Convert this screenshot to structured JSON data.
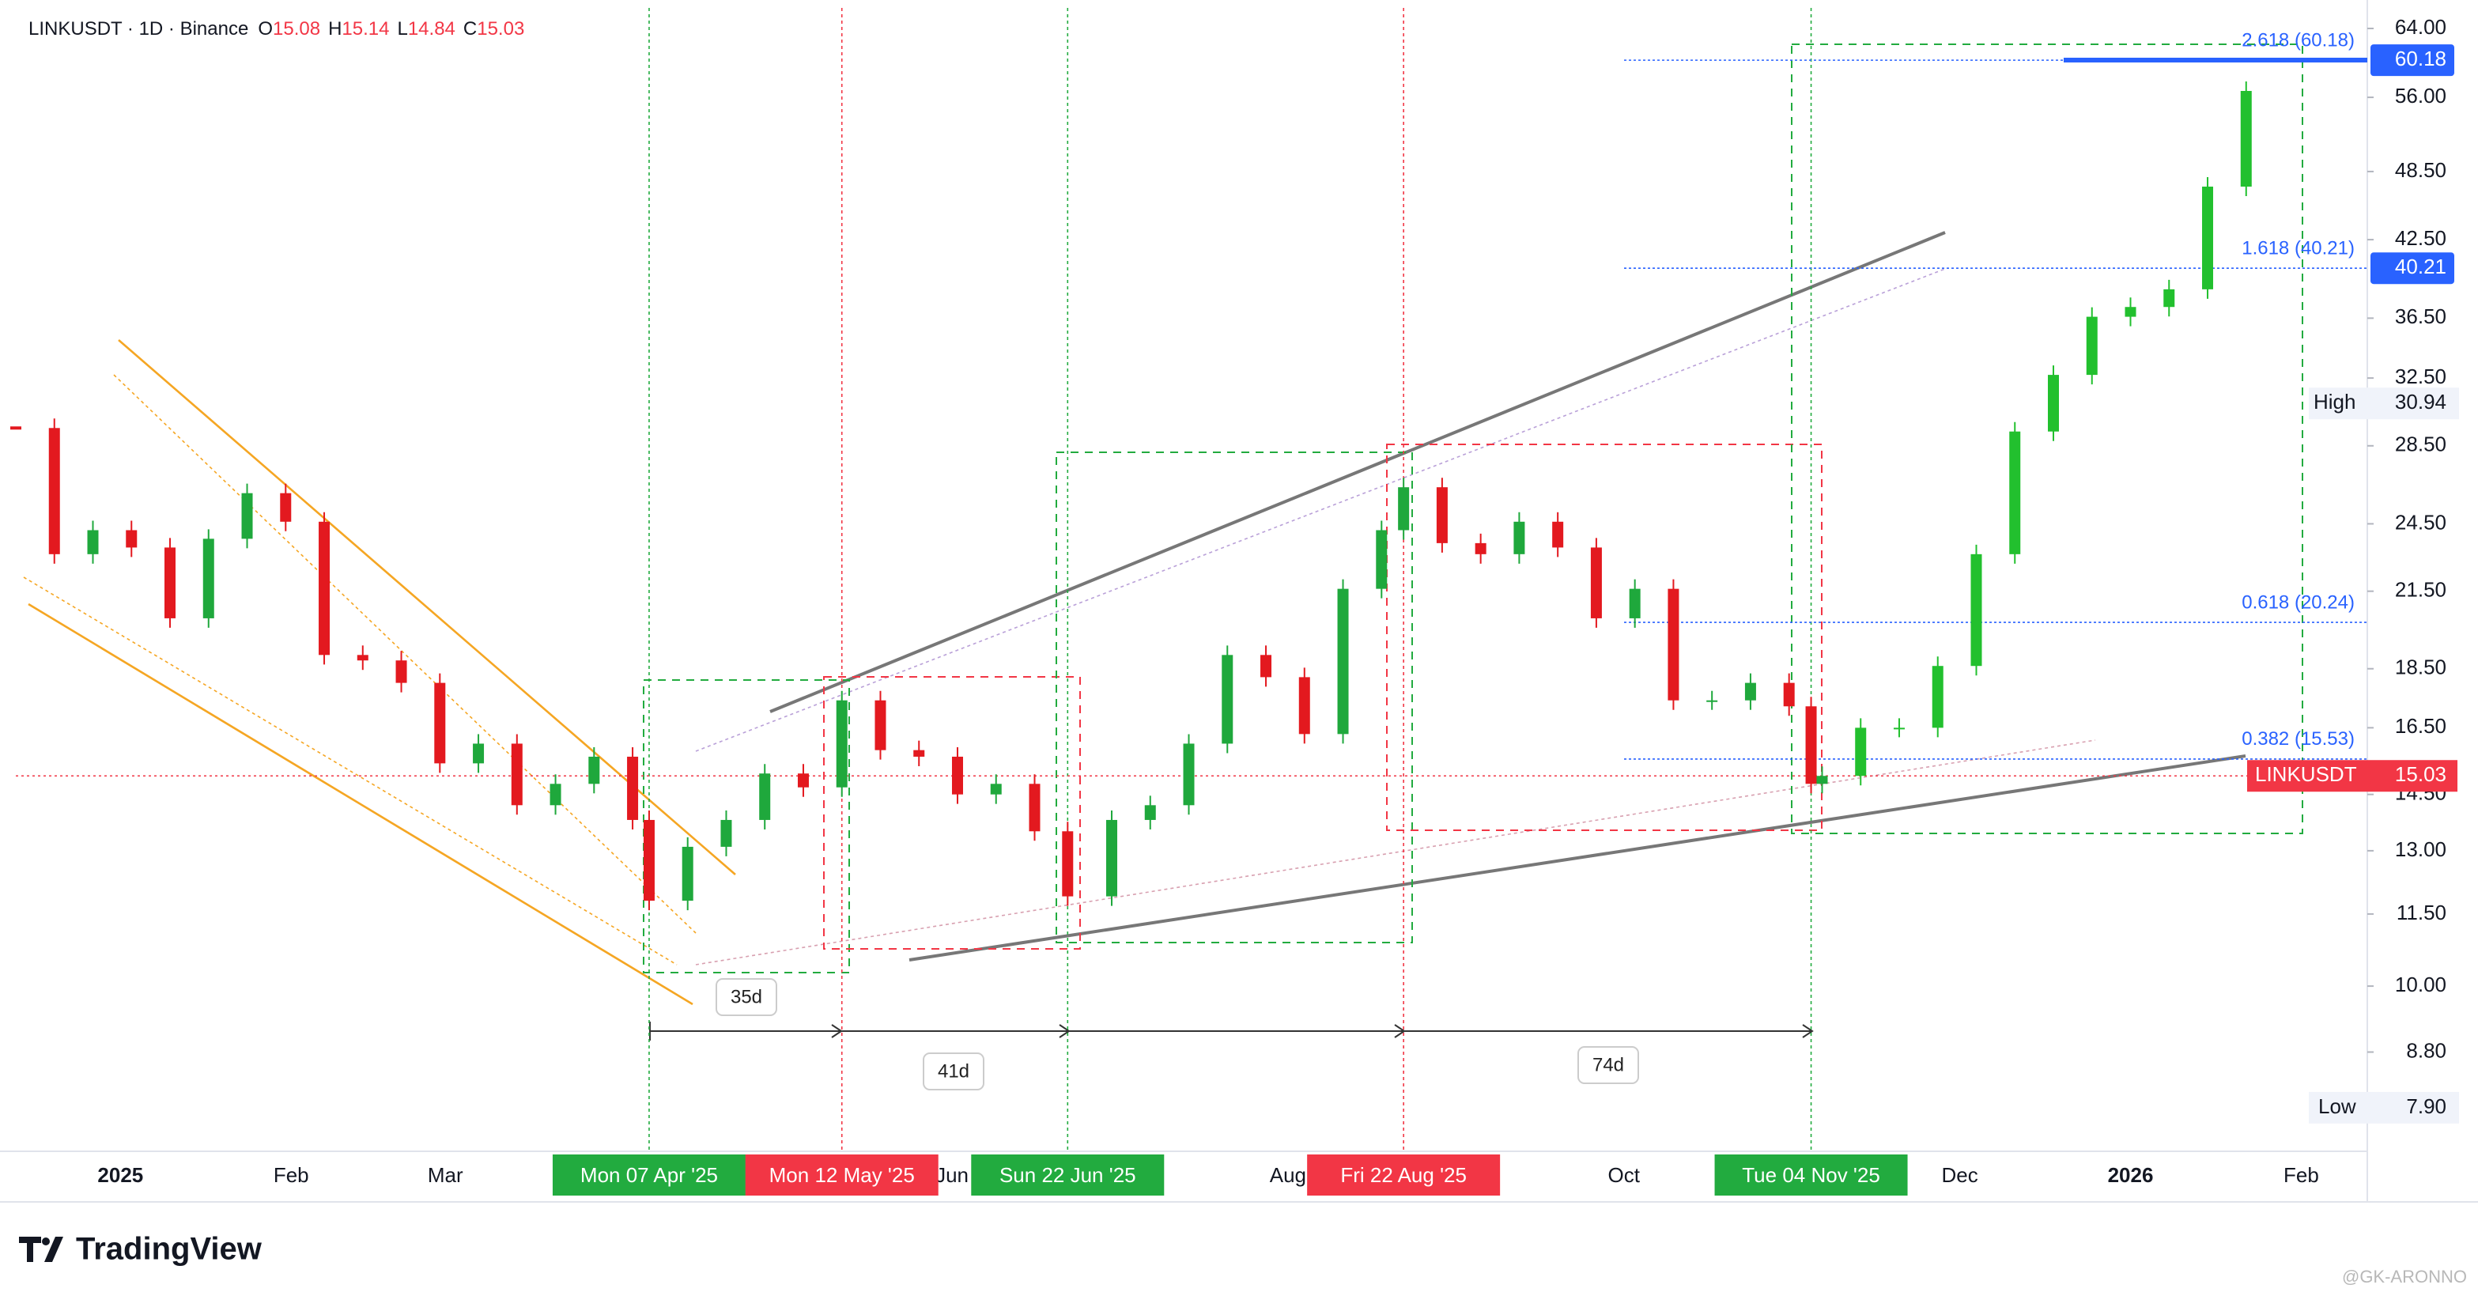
{
  "header": {
    "symbol_line": "LINKUSDT · 1D · Binance",
    "ohlc": [
      {
        "key": "O",
        "value": 15.08
      },
      {
        "key": "H",
        "value": 15.14
      },
      {
        "key": "L",
        "value": 14.84
      },
      {
        "key": "C",
        "value": 15.03
      }
    ]
  },
  "chart_data": {
    "type": "candlestick",
    "log_scale": true,
    "up_color": "#1fa83c",
    "down_color": "#e3191f",
    "projection_color": "#22c02e",
    "xlim": [
      "2024-12-13",
      "2026-02-13"
    ],
    "xticks": [
      {
        "value": "2025-01-01",
        "label": "2025"
      },
      {
        "value": "2025-02-01",
        "label": "Feb"
      },
      {
        "value": "2025-03-01",
        "label": "Mar"
      },
      {
        "value": "2025-06-01",
        "label": "Jun"
      },
      {
        "value": "2025-08-01",
        "label": "Aug"
      },
      {
        "value": "2025-10-01",
        "label": "Oct"
      },
      {
        "value": "2025-12-01",
        "label": "Dec"
      },
      {
        "value": "2026-01-01",
        "label": "2026"
      },
      {
        "value": "2026-02-01",
        "label": "Feb"
      }
    ],
    "ylim": [
      7.26,
      66.6
    ],
    "yticks": [
      {
        "value": 64,
        "label": "64.00"
      },
      {
        "value": 56,
        "label": "56.00"
      },
      {
        "value": 48.5,
        "label": "48.50"
      },
      {
        "value": 42.5,
        "label": "42.50"
      },
      {
        "value": 36.5,
        "label": "36.50"
      },
      {
        "value": 32.5,
        "label": "32.50"
      },
      {
        "value": 28.5,
        "label": "28.50"
      },
      {
        "value": 24.5,
        "label": "24.50"
      },
      {
        "value": 21.5,
        "label": "21.50"
      },
      {
        "value": 18.5,
        "label": "18.50"
      },
      {
        "value": 16.5,
        "label": "16.50"
      },
      {
        "value": 14.5,
        "label": "14.50"
      },
      {
        "value": 13,
        "label": "13.00"
      },
      {
        "value": 11.5,
        "label": "11.50"
      },
      {
        "value": 10,
        "label": "10.00"
      },
      {
        "value": 8.8,
        "label": "8.80"
      }
    ],
    "candles": {
      "x": [
        "2024-12-13",
        "2024-12-20",
        "2024-12-27",
        "2025-01-03",
        "2025-01-10",
        "2025-01-17",
        "2025-01-24",
        "2025-01-31",
        "2025-02-07",
        "2025-02-14",
        "2025-02-21",
        "2025-02-28",
        "2025-03-07",
        "2025-03-14",
        "2025-03-21",
        "2025-03-28",
        "2025-04-04",
        "2025-04-07",
        "2025-04-14",
        "2025-04-21",
        "2025-04-28",
        "2025-05-05",
        "2025-05-12",
        "2025-05-19",
        "2025-05-26",
        "2025-06-02",
        "2025-06-09",
        "2025-06-16",
        "2025-06-22",
        "2025-06-30",
        "2025-07-07",
        "2025-07-14",
        "2025-07-21",
        "2025-07-28",
        "2025-08-04",
        "2025-08-11",
        "2025-08-18",
        "2025-08-22",
        "2025-08-29",
        "2025-09-05",
        "2025-09-12",
        "2025-09-19",
        "2025-09-26",
        "2025-10-03",
        "2025-10-10",
        "2025-10-17",
        "2025-10-24",
        "2025-10-31",
        "2025-11-04",
        "2025-11-06"
      ],
      "close": [
        29.5,
        23.1,
        24.2,
        23.4,
        20.4,
        23.8,
        26.0,
        24.6,
        19.0,
        18.8,
        18.0,
        15.4,
        16.0,
        14.2,
        14.8,
        15.6,
        13.8,
        11.8,
        13.1,
        13.8,
        15.1,
        14.7,
        17.4,
        15.8,
        15.6,
        14.5,
        14.8,
        13.5,
        11.9,
        13.8,
        14.2,
        16.0,
        19.0,
        18.2,
        16.3,
        21.6,
        24.2,
        26.3,
        23.6,
        23.1,
        24.6,
        23.4,
        20.4,
        21.6,
        17.4,
        17.4,
        18.0,
        17.2,
        14.8,
        15.03
      ]
    },
    "projection": {
      "x": [
        "2025-11-13",
        "2025-11-20",
        "2025-11-27",
        "2025-12-04",
        "2025-12-11",
        "2025-12-18",
        "2025-12-25",
        "2026-01-01",
        "2026-01-08",
        "2026-01-15",
        "2026-01-22"
      ],
      "close": [
        16.5,
        16.5,
        18.6,
        23.1,
        29.3,
        32.7,
        36.6,
        37.3,
        38.6,
        47.1,
        56.7
      ]
    },
    "fib_levels": [
      {
        "label": "2.618 (60.18)",
        "value": 60.18
      },
      {
        "label": "1.618 (40.21)",
        "value": 40.21
      },
      {
        "label": "0.618 (20.24)",
        "value": 20.24
      },
      {
        "label": "0.382 (15.53)",
        "value": 15.53
      }
    ],
    "price_tags": [
      {
        "label": "60.18",
        "value": 60.18,
        "color": "#2962ff"
      },
      {
        "label": "40.21",
        "value": 40.21,
        "color": "#2962ff"
      }
    ],
    "high": {
      "name": "High",
      "value": 30.94
    },
    "low": {
      "name": "Low",
      "value": {
        "value": 7.9,
        "label": "7.90"
      }
    },
    "current": {
      "symbol": "LINKUSDT",
      "value": 15.03,
      "color": "#f23645"
    },
    "markers": [
      {
        "date": "2025-04-07",
        "label": "Mon 07 Apr '25",
        "color": "#22ab3f"
      },
      {
        "date": "2025-05-12",
        "label": "Mon 12 May '25",
        "color": "#f23645"
      },
      {
        "date": "2025-06-22",
        "label": "Sun 22 Jun '25",
        "color": "#22ab3f"
      },
      {
        "date": "2025-08-22",
        "label": "Fri 22 Aug '25",
        "color": "#f23645"
      },
      {
        "date": "2025-11-04",
        "label": "Tue 04 Nov '25",
        "color": "#22ab3f"
      }
    ],
    "durations": [
      "35d",
      "41d",
      "74d"
    ]
  },
  "footer": {
    "brand": "TradingView",
    "watermark": "@GK-ARONNO"
  }
}
